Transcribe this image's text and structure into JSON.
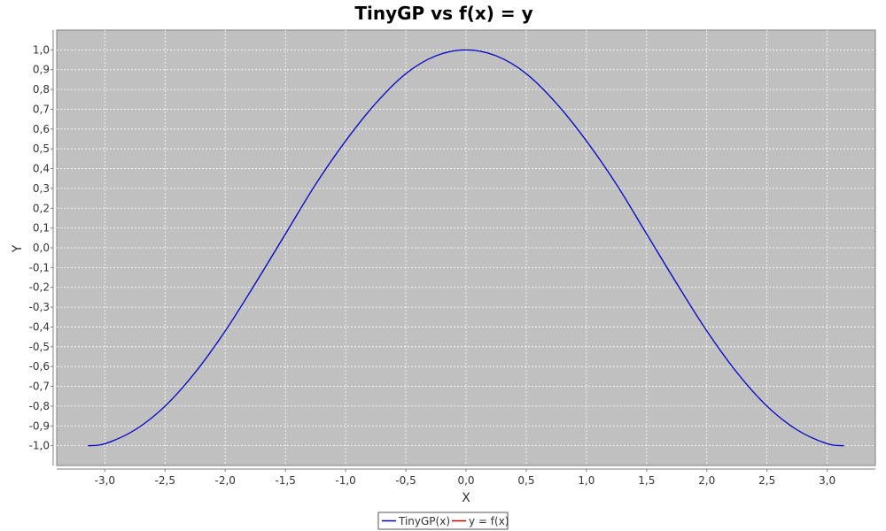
{
  "chart_data": {
    "type": "line",
    "title": "TinyGP vs f(x) = y",
    "xlabel": "X",
    "ylabel": "Y",
    "xlim": [
      -3.4,
      3.4
    ],
    "ylim": [
      -1.1,
      1.1
    ],
    "x_ticks": [
      "-3,0",
      "-2,5",
      "-2,0",
      "-1,5",
      "-1,0",
      "-0,5",
      "0,0",
      "0,5",
      "1,0",
      "1,5",
      "2,0",
      "2,5",
      "3,0"
    ],
    "y_ticks": [
      "-1,0",
      "-0,9",
      "-0,8",
      "-0,7",
      "-0,6",
      "-0,5",
      "-0,4",
      "-0,3",
      "-0,2",
      "-0,1",
      "0,0",
      "0,1",
      "0,2",
      "0,3",
      "0,4",
      "0,5",
      "0,6",
      "0,7",
      "0,8",
      "0,9",
      "1,0"
    ],
    "grid": true,
    "legend_position": "bottom-center",
    "plot_background": "#c0c0c0",
    "series": [
      {
        "name": "TinyGP(x)",
        "color": "#0000c8",
        "x": [
          -3.14,
          -3.0,
          -2.75,
          -2.5,
          -2.25,
          -2.0,
          -1.75,
          -1.5,
          -1.25,
          -1.0,
          -0.75,
          -0.5,
          -0.25,
          0.0,
          0.25,
          0.5,
          0.75,
          1.0,
          1.25,
          1.5,
          1.75,
          2.0,
          2.25,
          2.5,
          2.75,
          3.0,
          3.14
        ],
        "y": [
          -1.0,
          -0.99,
          -0.92,
          -0.8,
          -0.63,
          -0.42,
          -0.18,
          0.07,
          0.32,
          0.54,
          0.73,
          0.88,
          0.97,
          1.0,
          0.97,
          0.88,
          0.73,
          0.54,
          0.32,
          0.07,
          -0.18,
          -0.42,
          -0.63,
          -0.8,
          -0.92,
          -0.99,
          -1.0
        ]
      },
      {
        "name": "y = f(x)",
        "color": "#c80000",
        "x": [],
        "y": []
      }
    ]
  }
}
